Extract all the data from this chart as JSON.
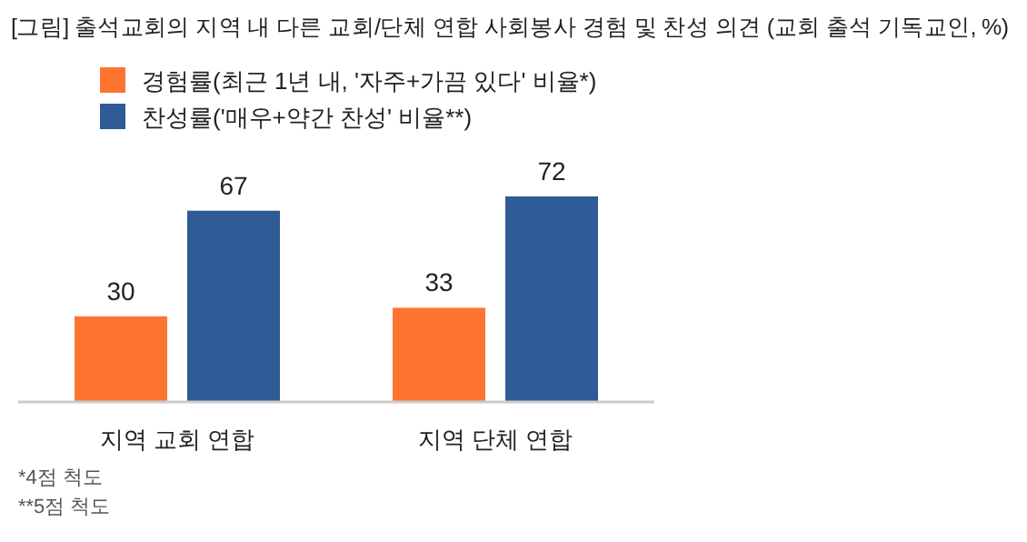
{
  "chart_data": {
    "type": "bar",
    "title": "[그림] 출석교회의 지역 내 다른 교회/단체 연합 사회봉사 경험 및 찬성 의견 (교회 출석 기독교인, %)",
    "categories": [
      "지역 교회 연합",
      "지역 단체 연합"
    ],
    "series": [
      {
        "name": "경험률(최근 1년 내, '자주+가끔 있다' 비율*)",
        "color": "#fe7431",
        "values": [
          30,
          33
        ]
      },
      {
        "name": "찬성률('매우+약간 찬성' 비율**)",
        "color": "#2f5b96",
        "values": [
          67,
          72
        ]
      }
    ],
    "data_labels": true,
    "legend": "top",
    "grid": false,
    "annotations": [
      "*4점 척도",
      "**5점 척도"
    ]
  }
}
